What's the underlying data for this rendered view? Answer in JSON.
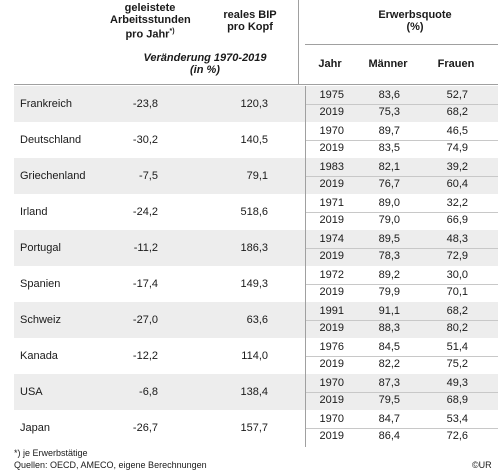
{
  "header": {
    "hours_line1": "geleistete",
    "hours_line2": "Arbeitsstunden",
    "hours_line3": "pro Jahr",
    "hours_footnote_mark": "*)",
    "gdp_line1": "reales BIP",
    "gdp_line2": "pro Kopf",
    "change_line1": "Veränderung 1970-2019",
    "change_line2": "(in %)",
    "rate_line1": "Erwerbsquote",
    "rate_line2": "(%)",
    "col_year": "Jahr",
    "col_men": "Männer",
    "col_women": "Frauen"
  },
  "rows": [
    {
      "country": "Frankreich",
      "hours": "-23,8",
      "gdp": "120,3",
      "y1": "1975",
      "m1": "83,6",
      "w1": "52,7",
      "y2": "2019",
      "m2": "75,3",
      "w2": "68,2"
    },
    {
      "country": "Deutschland",
      "hours": "-30,2",
      "gdp": "140,5",
      "y1": "1970",
      "m1": "89,7",
      "w1": "46,5",
      "y2": "2019",
      "m2": "83,5",
      "w2": "74,9"
    },
    {
      "country": "Griechenland",
      "hours": "-7,5",
      "gdp": "79,1",
      "y1": "1983",
      "m1": "82,1",
      "w1": "39,2",
      "y2": "2019",
      "m2": "76,7",
      "w2": "60,4"
    },
    {
      "country": "Irland",
      "hours": "-24,2",
      "gdp": "518,6",
      "y1": "1971",
      "m1": "89,0",
      "w1": "32,2",
      "y2": "2019",
      "m2": "79,0",
      "w2": "66,9"
    },
    {
      "country": "Portugal",
      "hours": "-11,2",
      "gdp": "186,3",
      "y1": "1974",
      "m1": "89,5",
      "w1": "48,3",
      "y2": "2019",
      "m2": "78,3",
      "w2": "72,9"
    },
    {
      "country": "Spanien",
      "hours": "-17,4",
      "gdp": "149,3",
      "y1": "1972",
      "m1": "89,2",
      "w1": "30,0",
      "y2": "2019",
      "m2": "79,9",
      "w2": "70,1"
    },
    {
      "country": "Schweiz",
      "hours": "-27,0",
      "gdp": "63,6",
      "y1": "1991",
      "m1": "91,1",
      "w1": "68,2",
      "y2": "2019",
      "m2": "88,3",
      "w2": "80,2"
    },
    {
      "country": "Kanada",
      "hours": "-12,2",
      "gdp": "114,0",
      "y1": "1976",
      "m1": "84,5",
      "w1": "51,4",
      "y2": "2019",
      "m2": "82,2",
      "w2": "75,2"
    },
    {
      "country": "USA",
      "hours": "-6,8",
      "gdp": "138,4",
      "y1": "1970",
      "m1": "87,3",
      "w1": "49,3",
      "y2": "2019",
      "m2": "79,5",
      "w2": "68,9"
    },
    {
      "country": "Japan",
      "hours": "-26,7",
      "gdp": "157,7",
      "y1": "1970",
      "m1": "84,7",
      "w1": "53,4",
      "y2": "2019",
      "m2": "86,4",
      "w2": "72,6"
    }
  ],
  "footer": {
    "note": "*) je Erwerbstätige",
    "source": "Quellen: OECD, AMECO, eigene Berechnungen",
    "credit": "©UR"
  },
  "colors": {
    "shade": "#ededed",
    "rule": "#a0a0a0"
  }
}
